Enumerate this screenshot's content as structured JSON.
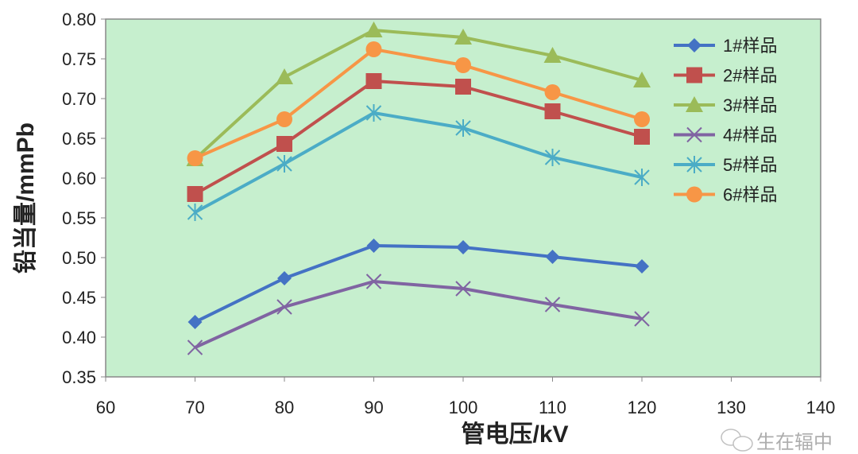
{
  "chart_data": {
    "type": "line",
    "title": "",
    "xlabel": "管电压/kV",
    "ylabel": "铅当量/mmPb",
    "xlim": [
      60,
      140
    ],
    "ylim": [
      0.35,
      0.8
    ],
    "xticks": [
      "60",
      "70",
      "80",
      "90",
      "100",
      "110",
      "120",
      "130",
      "140"
    ],
    "yticks": [
      "0.35",
      "0.40",
      "0.45",
      "0.50",
      "0.55",
      "0.60",
      "0.65",
      "0.70",
      "0.75",
      "0.80"
    ],
    "x": [
      70,
      80,
      90,
      100,
      110,
      120
    ],
    "legend_position": "right",
    "series": [
      {
        "name": "1#样品",
        "color": "#4472c4",
        "marker": "diamond",
        "values": [
          0.419,
          0.474,
          0.515,
          0.513,
          0.501,
          0.489
        ]
      },
      {
        "name": "2#样品",
        "color": "#c0504d",
        "marker": "square",
        "values": [
          0.58,
          0.643,
          0.722,
          0.715,
          0.684,
          0.652
        ]
      },
      {
        "name": "3#样品",
        "color": "#9bbb59",
        "marker": "triangle",
        "values": [
          0.624,
          0.727,
          0.786,
          0.777,
          0.754,
          0.723
        ]
      },
      {
        "name": "4#样品",
        "color": "#8064a2",
        "marker": "x",
        "values": [
          0.387,
          0.438,
          0.47,
          0.461,
          0.441,
          0.423
        ]
      },
      {
        "name": "5#样品",
        "color": "#4bacc6",
        "marker": "star",
        "values": [
          0.557,
          0.618,
          0.682,
          0.663,
          0.626,
          0.601
        ]
      },
      {
        "name": "6#样品",
        "color": "#f79646",
        "marker": "circle",
        "values": [
          0.625,
          0.674,
          0.762,
          0.742,
          0.708,
          0.674
        ]
      }
    ],
    "plot_bg": "#c6efce"
  },
  "watermark": "生在辐中"
}
